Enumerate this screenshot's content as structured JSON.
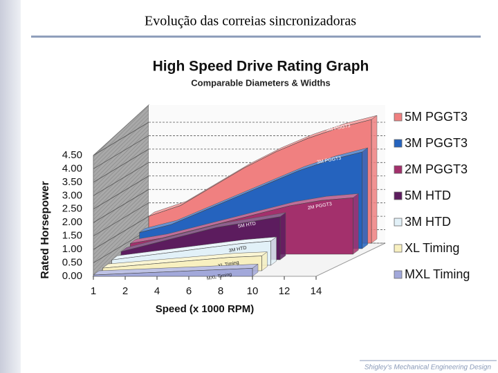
{
  "slide": {
    "title": "Evolução das correias sincronizadoras",
    "footer": "Shigley's Mechanical Engineering Design"
  },
  "chart_data": {
    "type": "ribbon3d",
    "title": "High Speed Drive Rating Graph",
    "subtitle": "Comparable Diameters & Widths",
    "x_label": "Speed (x 1000 RPM)",
    "y_label": "Rated Horsepower",
    "categories": [
      "1",
      "2",
      "4",
      "6",
      "8",
      "10",
      "12",
      "14"
    ],
    "ylim": [
      0,
      4.5
    ],
    "yticks": [
      {
        "value": 0,
        "label": "0.00"
      },
      {
        "value": 0.5,
        "label": "0.50"
      },
      {
        "value": 1,
        "label": "1.00"
      },
      {
        "value": 1.5,
        "label": "1.50"
      },
      {
        "value": 2,
        "label": "2.00"
      },
      {
        "value": 2.5,
        "label": "2.50"
      },
      {
        "value": 3,
        "label": "3.00"
      },
      {
        "value": 3.5,
        "label": "3.50"
      },
      {
        "value": 4,
        "label": "4.00"
      },
      {
        "value": 4.5,
        "label": "4.50"
      }
    ],
    "grid": true,
    "legend": "right",
    "series": [
      {
        "name": "5M PGGT3",
        "color": "#f08080",
        "values": [
          1.0,
          1.4,
          2.1,
          2.8,
          3.4,
          3.9,
          4.3,
          4.6
        ]
      },
      {
        "name": "3M PGGT3",
        "color": "#2563be",
        "values": [
          0.6,
          0.9,
          1.4,
          1.9,
          2.4,
          2.9,
          3.3,
          3.6
        ]
      },
      {
        "name": "2M PGGT3",
        "color": "#a3306c",
        "values": [
          0.4,
          0.6,
          0.9,
          1.2,
          1.5,
          1.8,
          2.0,
          2.1
        ]
      },
      {
        "name": "5M HTD",
        "color": "#5c1c5e",
        "values": [
          0.3,
          0.6,
          0.9,
          1.2,
          1.4,
          1.6,
          null,
          null
        ]
      },
      {
        "name": "3M HTD",
        "color": "#e2f1f8",
        "values": [
          0.2,
          0.35,
          0.5,
          0.65,
          0.8,
          0.9,
          null,
          null
        ]
      },
      {
        "name": "XL Timing",
        "color": "#f8f0c0",
        "values": [
          0.1,
          0.2,
          0.3,
          0.4,
          0.5,
          0.55,
          null,
          null
        ]
      },
      {
        "name": "MXL Timing",
        "color": "#a2a8da",
        "values": [
          0.05,
          0.1,
          0.15,
          0.2,
          0.25,
          0.3,
          null,
          null
        ]
      }
    ]
  }
}
